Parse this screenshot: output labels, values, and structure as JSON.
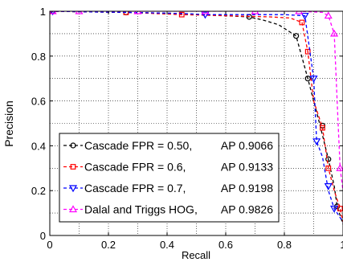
{
  "chart_data": {
    "type": "line",
    "title": "",
    "xlabel": "Recall",
    "ylabel": "Precision",
    "xlim": [
      0,
      1
    ],
    "ylim": [
      0,
      1
    ],
    "xticks": [
      "0",
      "0.2",
      "0.4",
      "0.6",
      "0.8",
      "1"
    ],
    "yticks": [
      "0",
      "0.2",
      "0.4",
      "0.6",
      "0.8",
      "1"
    ],
    "grid": true,
    "legend_position": "bottom-left",
    "series": [
      {
        "name": "Cascade FPR = 0.50,",
        "ap_label": "AP 0.9066",
        "color": "#000000",
        "marker": "circle",
        "points": [
          [
            0,
            1
          ],
          [
            0.1,
            0.998
          ],
          [
            0.25,
            0.995
          ],
          [
            0.45,
            0.99
          ],
          [
            0.6,
            0.98
          ],
          [
            0.68,
            0.975
          ],
          [
            0.73,
            0.96
          ],
          [
            0.78,
            0.94
          ],
          [
            0.84,
            0.89
          ],
          [
            0.88,
            0.7
          ],
          [
            0.92,
            0.5
          ],
          [
            0.95,
            0.34
          ],
          [
            0.97,
            0.22
          ],
          [
            0.98,
            0.13
          ],
          [
            0.99,
            0.09
          ],
          [
            1.0,
            0.05
          ]
        ],
        "marker_points": [
          [
            0.0,
            1
          ],
          [
            0.26,
            0.995
          ],
          [
            0.68,
            0.975
          ],
          [
            0.84,
            0.89
          ],
          [
            0.88,
            0.7
          ],
          [
            0.93,
            0.49
          ],
          [
            0.95,
            0.34
          ],
          [
            0.98,
            0.13
          ]
        ]
      },
      {
        "name": "Cascade FPR = 0.6,",
        "ap_label": "AP 0.9133",
        "color": "#ff0000",
        "marker": "square",
        "points": [
          [
            0,
            1
          ],
          [
            0.1,
            0.998
          ],
          [
            0.26,
            0.995
          ],
          [
            0.45,
            0.985
          ],
          [
            0.6,
            0.98
          ],
          [
            0.75,
            0.975
          ],
          [
            0.82,
            0.97
          ],
          [
            0.86,
            0.95
          ],
          [
            0.88,
            0.82
          ],
          [
            0.9,
            0.6
          ],
          [
            0.93,
            0.48
          ],
          [
            0.95,
            0.3
          ],
          [
            0.97,
            0.2
          ],
          [
            0.99,
            0.12
          ],
          [
            1.0,
            0.06
          ]
        ],
        "marker_points": [
          [
            0.01,
            1
          ],
          [
            0.26,
            0.995
          ],
          [
            0.45,
            0.985
          ],
          [
            0.86,
            0.95
          ],
          [
            0.88,
            0.82
          ],
          [
            0.93,
            0.48
          ],
          [
            0.95,
            0.3
          ],
          [
            0.99,
            0.12
          ]
        ]
      },
      {
        "name": "Cascade FPR = 0.7,",
        "ap_label": "AP 0.9198",
        "color": "#0000ff",
        "marker": "triangle-down",
        "points": [
          [
            0,
            1
          ],
          [
            0.1,
            0.998
          ],
          [
            0.26,
            0.995
          ],
          [
            0.45,
            0.99
          ],
          [
            0.53,
            0.985
          ],
          [
            0.7,
            0.985
          ],
          [
            0.8,
            0.985
          ],
          [
            0.87,
            0.98
          ],
          [
            0.9,
            0.7
          ],
          [
            0.91,
            0.42
          ],
          [
            0.93,
            0.35
          ],
          [
            0.95,
            0.2
          ],
          [
            0.97,
            0.12
          ],
          [
            0.99,
            0.08
          ],
          [
            1.0,
            0.06
          ]
        ],
        "marker_points": [
          [
            0.01,
            1
          ],
          [
            0.53,
            0.985
          ],
          [
            0.87,
            0.98
          ],
          [
            0.9,
            0.7
          ],
          [
            0.91,
            0.42
          ],
          [
            0.95,
            0.22
          ],
          [
            0.97,
            0.12
          ]
        ]
      },
      {
        "name": "Dalal and Triggs HOG,",
        "ap_label": "AP 0.9826",
        "color": "#ff00ff",
        "marker": "triangle-up",
        "points": [
          [
            0,
            1
          ],
          [
            0.1,
            1
          ],
          [
            0.3,
            1
          ],
          [
            0.5,
            1
          ],
          [
            0.7,
            1
          ],
          [
            0.85,
            1
          ],
          [
            0.93,
            0.995
          ],
          [
            0.95,
            0.98
          ],
          [
            0.97,
            0.9
          ],
          [
            0.98,
            0.6
          ],
          [
            0.99,
            0.3
          ],
          [
            1.0,
            0.2
          ]
        ],
        "marker_points": [
          [
            0.01,
            1
          ],
          [
            0.1,
            1
          ],
          [
            0.3,
            1
          ],
          [
            0.53,
            1
          ],
          [
            0.7,
            1
          ],
          [
            0.85,
            1
          ],
          [
            0.95,
            0.98
          ],
          [
            0.97,
            0.9
          ],
          [
            0.99,
            0.3
          ]
        ]
      }
    ]
  }
}
